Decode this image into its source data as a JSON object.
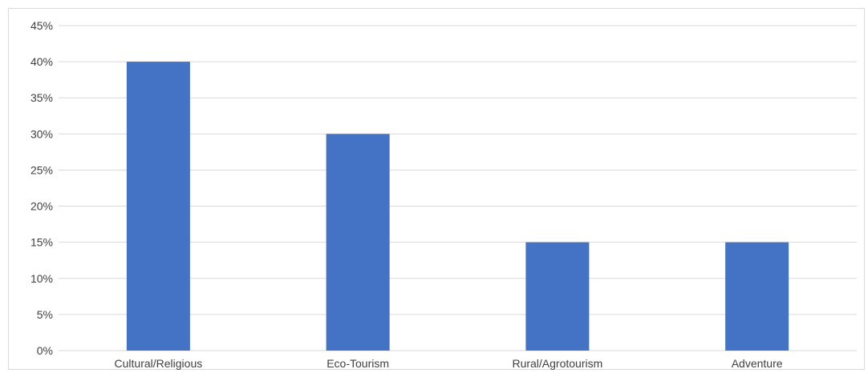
{
  "chart_data": {
    "type": "bar",
    "title": "",
    "xlabel": "",
    "ylabel": "",
    "categories": [
      "Cultural/Religious",
      "Eco-Tourism",
      "Rural/Agrotourism",
      "Adventure"
    ],
    "values": [
      40,
      30,
      15,
      15
    ],
    "ylim": [
      0,
      45
    ],
    "yticks": [
      "0%",
      "5%",
      "10%",
      "15%",
      "20%",
      "25%",
      "30%",
      "35%",
      "40%",
      "45%"
    ],
    "y_unit": "%",
    "grid": true,
    "legend": false,
    "colors": {
      "bar": "#4472c4",
      "grid": "#d9d9d9",
      "text": "#404040"
    }
  }
}
